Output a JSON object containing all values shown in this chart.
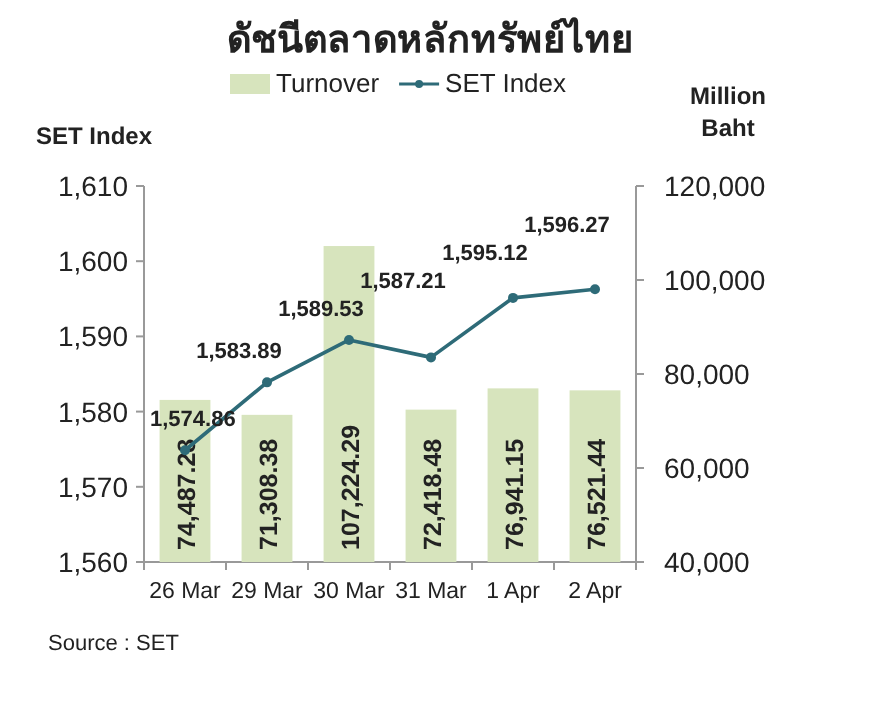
{
  "chart_data": {
    "type": "bar",
    "title": "ดัชนีตลาดหลักทรัพย์ไทย",
    "ylabel": "SET Index",
    "y2label": "Million Baht",
    "categories": [
      "26 Mar",
      "29 Mar",
      "30 Mar",
      "31 Mar",
      "1 Apr",
      "2 Apr"
    ],
    "series": [
      {
        "name": "Turnover",
        "axis": "y2",
        "color": "#d7e4bd",
        "values": [
          74487.28,
          71308.38,
          107224.29,
          72418.48,
          76941.15,
          76521.44
        ],
        "value_labels": [
          "74,487.28",
          "71,308.38",
          "107,224.29",
          "72,418.48",
          "76,941.15",
          "76,521.44"
        ]
      },
      {
        "name": "SET Index",
        "type": "line",
        "axis": "y",
        "color": "#2e6b78",
        "values": [
          1574.86,
          1583.89,
          1589.53,
          1587.21,
          1595.12,
          1596.27
        ],
        "value_labels": [
          "1,574.86",
          "1,583.89",
          "1,589.53",
          "1,587.21",
          "1,595.12",
          "1,596.27"
        ]
      }
    ],
    "ylim": [
      1560,
      1610
    ],
    "yticks": [
      {
        "value": 1560,
        "label": "1,560"
      },
      {
        "value": 1570,
        "label": "1,570"
      },
      {
        "value": 1580,
        "label": "1,580"
      },
      {
        "value": 1590,
        "label": "1,590"
      },
      {
        "value": 1600,
        "label": "1,600"
      },
      {
        "value": 1610,
        "label": "1,610"
      }
    ],
    "y2lim": [
      40000,
      120000
    ],
    "y2ticks": [
      {
        "value": 40000,
        "label": "40,000"
      },
      {
        "value": 60000,
        "label": "60,000"
      },
      {
        "value": 80000,
        "label": "80,000"
      },
      {
        "value": 100000,
        "label": "100,000"
      },
      {
        "value": 120000,
        "label": "120,000"
      }
    ],
    "legend": "top",
    "marker": "circle",
    "line_style": "solid",
    "annotations": [
      "Source : SET"
    ]
  }
}
